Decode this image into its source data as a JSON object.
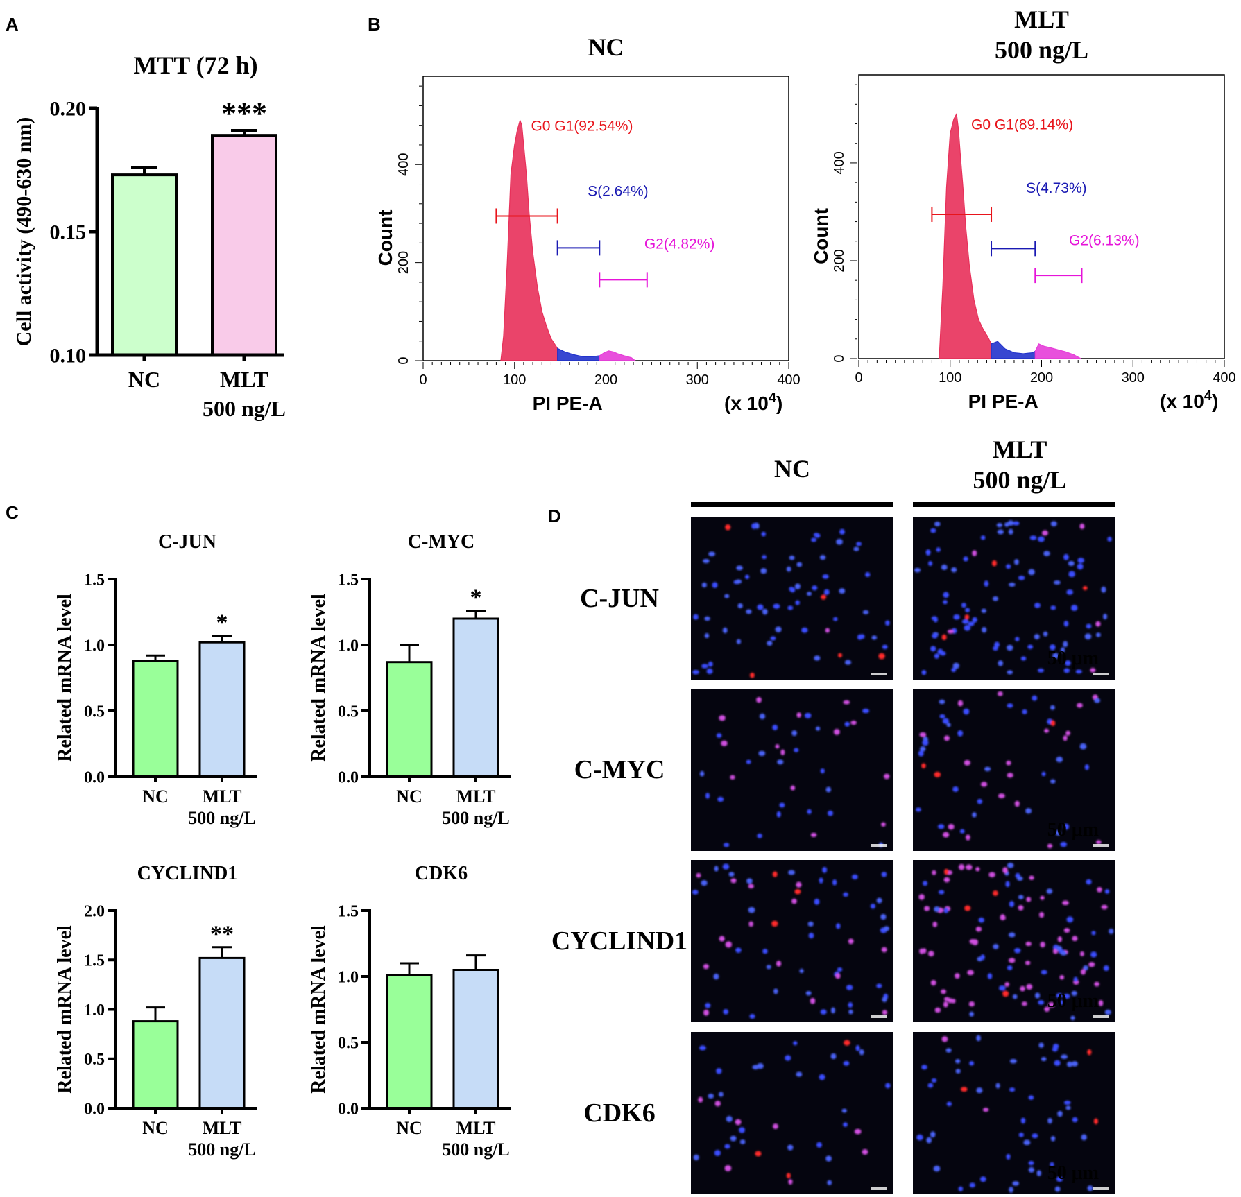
{
  "panel_labels": {
    "a": "A",
    "b": "B",
    "c": "C",
    "d": "D"
  },
  "chart_data": [
    {
      "id": "A",
      "type": "bar",
      "title": "MTT (72 h)",
      "categories": [
        "NC",
        "MLT\n500 ng/L"
      ],
      "cat_lines": [
        [
          "NC"
        ],
        [
          "MLT",
          "500 ng/L"
        ]
      ],
      "values": [
        0.173,
        0.189
      ],
      "errors": [
        0.003,
        0.002
      ],
      "colors": [
        "#ccffcc",
        "#f9cbe9"
      ],
      "significance": [
        "",
        "***"
      ],
      "ylabel": "Cell activity (490-630 nm)",
      "ylim": [
        0.1,
        0.2
      ],
      "yticks": [
        0.1,
        0.15,
        0.2
      ],
      "ytick_labels": [
        "0.10",
        "0.15",
        "0.20"
      ]
    },
    {
      "id": "C1",
      "type": "bar",
      "title": "C-JUN",
      "categories": [
        "NC",
        "MLT\n500 ng/L"
      ],
      "cat_lines": [
        [
          "NC"
        ],
        [
          "MLT",
          "500 ng/L"
        ]
      ],
      "values": [
        0.88,
        1.02
      ],
      "errors": [
        0.04,
        0.05
      ],
      "colors": [
        "#99ff99",
        "#c6dcf7"
      ],
      "significance": [
        "",
        "*"
      ],
      "ylabel": "Related mRNA level",
      "ylim": [
        0,
        1.5
      ],
      "yticks": [
        0,
        0.5,
        1.0,
        1.5
      ],
      "ytick_labels": [
        "0.0",
        "0.5",
        "1.0",
        "1.5"
      ]
    },
    {
      "id": "C2",
      "type": "bar",
      "title": "C-MYC",
      "categories": [
        "NC",
        "MLT\n500 ng/L"
      ],
      "cat_lines": [
        [
          "NC"
        ],
        [
          "MLT",
          "500 ng/L"
        ]
      ],
      "values": [
        0.87,
        1.2
      ],
      "errors": [
        0.13,
        0.06
      ],
      "colors": [
        "#99ff99",
        "#c6dcf7"
      ],
      "significance": [
        "",
        "*"
      ],
      "ylabel": "Related mRNA level",
      "ylim": [
        0,
        1.5
      ],
      "yticks": [
        0,
        0.5,
        1.0,
        1.5
      ],
      "ytick_labels": [
        "0.0",
        "0.5",
        "1.0",
        "1.5"
      ]
    },
    {
      "id": "C3",
      "type": "bar",
      "title": "CYCLIND1",
      "categories": [
        "NC",
        "MLT\n500 ng/L"
      ],
      "cat_lines": [
        [
          "NC"
        ],
        [
          "MLT",
          "500 ng/L"
        ]
      ],
      "values": [
        0.88,
        1.52
      ],
      "errors": [
        0.14,
        0.11
      ],
      "colors": [
        "#99ff99",
        "#c6dcf7"
      ],
      "significance": [
        "",
        "**"
      ],
      "ylabel": "Related mRNA level",
      "ylim": [
        0,
        2.0
      ],
      "yticks": [
        0,
        0.5,
        1.0,
        1.5,
        2.0
      ],
      "ytick_labels": [
        "0.0",
        "0.5",
        "1.0",
        "1.5",
        "2.0"
      ]
    },
    {
      "id": "C4",
      "type": "bar",
      "title": "CDK6",
      "categories": [
        "NC",
        "MLT\n500 ng/L"
      ],
      "cat_lines": [
        [
          "NC"
        ],
        [
          "MLT",
          "500 ng/L"
        ]
      ],
      "values": [
        1.01,
        1.05
      ],
      "errors": [
        0.09,
        0.11
      ],
      "colors": [
        "#99ff99",
        "#c6dcf7"
      ],
      "significance": [
        "",
        ""
      ],
      "ylabel": "Related mRNA level",
      "ylim": [
        0,
        1.5
      ],
      "yticks": [
        0,
        0.5,
        1.0,
        1.5
      ],
      "ytick_labels": [
        "0.0",
        "0.5",
        "1.0",
        "1.5"
      ]
    },
    {
      "id": "B1",
      "type": "area",
      "title": "NC",
      "ylabel": "Count",
      "xlabel": "PI PE-A",
      "xunit": "(x 10",
      "xunit_sup": "4",
      "xunit_end": ")",
      "xlim": [
        0,
        400
      ],
      "ylim": [
        0,
        580
      ],
      "xticks": [
        0,
        100,
        200,
        300,
        400
      ],
      "yticks": [
        0,
        200,
        400
      ],
      "gates": [
        {
          "label": "G0 G1(92.54%)",
          "x0": 80,
          "x1": 147,
          "y": 295,
          "color": "#e8141b",
          "label_x": 118,
          "label_y": 480
        },
        {
          "label": "S(2.64%)",
          "x0": 147,
          "x1": 193,
          "y": 230,
          "color": "#1a1ab3",
          "label_x": 180,
          "label_y": 347
        },
        {
          "label": "G2(4.82%)",
          "x0": 193,
          "x1": 245,
          "y": 165,
          "color": "#e614d9",
          "label_x": 242,
          "label_y": 240
        }
      ],
      "series": [
        {
          "name": "G0/G1",
          "color": "#e8305a",
          "x": [
            85,
            88,
            92,
            96,
            100,
            103,
            106,
            108,
            110,
            113,
            116,
            120,
            125,
            130,
            135,
            140,
            147
          ],
          "y": [
            0,
            50,
            200,
            380,
            440,
            470,
            490,
            480,
            440,
            380,
            300,
            220,
            150,
            100,
            70,
            45,
            25
          ]
        },
        {
          "name": "S",
          "color": "#2233cc",
          "x": [
            147,
            155,
            165,
            175,
            185,
            193
          ],
          "y": [
            25,
            18,
            12,
            8,
            8,
            10
          ]
        },
        {
          "name": "G2",
          "color": "#e63dd8",
          "x": [
            193,
            198,
            203,
            208,
            213,
            220,
            228,
            232
          ],
          "y": [
            10,
            16,
            20,
            18,
            14,
            10,
            6,
            0
          ]
        }
      ]
    },
    {
      "id": "B2",
      "type": "area",
      "title": "MLT\n500 ng/L",
      "title_lines": [
        "MLT",
        "500 ng/L"
      ],
      "ylabel": "Count",
      "xlabel": "PI PE-A",
      "xunit": "(x 10",
      "xunit_sup": "4",
      "xunit_end": ")",
      "xlim": [
        0,
        400
      ],
      "ylim": [
        0,
        580
      ],
      "xticks": [
        0,
        100,
        200,
        300,
        400
      ],
      "yticks": [
        0,
        200,
        400
      ],
      "gates": [
        {
          "label": "G0 G1(89.14%)",
          "x0": 80,
          "x1": 145,
          "y": 295,
          "color": "#e8141b",
          "label_x": 123,
          "label_y": 480
        },
        {
          "label": "S(4.73%)",
          "x0": 145,
          "x1": 193,
          "y": 225,
          "color": "#1a1ab3",
          "label_x": 183,
          "label_y": 350
        },
        {
          "label": "G2(6.13%)",
          "x0": 193,
          "x1": 244,
          "y": 170,
          "color": "#e614d9",
          "label_x": 230,
          "label_y": 243
        }
      ],
      "series": [
        {
          "name": "G0/G1",
          "color": "#e8305a",
          "x": [
            88,
            92,
            96,
            100,
            104,
            107,
            109,
            111,
            114,
            117,
            121,
            126,
            131,
            136,
            141,
            145
          ],
          "y": [
            0,
            150,
            350,
            460,
            490,
            500,
            470,
            420,
            350,
            270,
            190,
            120,
            80,
            60,
            45,
            30
          ]
        },
        {
          "name": "S",
          "color": "#2233cc",
          "x": [
            145,
            152,
            160,
            170,
            180,
            190,
            193
          ],
          "y": [
            30,
            35,
            20,
            12,
            10,
            12,
            15
          ]
        },
        {
          "name": "G2",
          "color": "#e63dd8",
          "x": [
            193,
            197,
            203,
            210,
            218,
            226,
            235,
            243
          ],
          "y": [
            15,
            30,
            25,
            22,
            18,
            14,
            8,
            0
          ]
        }
      ]
    }
  ],
  "panel_d": {
    "col_headers": [
      "NC",
      [
        "MLT",
        "500 ng/L"
      ]
    ],
    "col_header_nc": "NC",
    "col_header_mlt_1": "MLT",
    "col_header_mlt_2": "500 ng/L",
    "rows": [
      "C-JUN",
      "C-MYC",
      "CYCLIND1",
      "CDK6"
    ],
    "scale_bar": "50 μm"
  }
}
